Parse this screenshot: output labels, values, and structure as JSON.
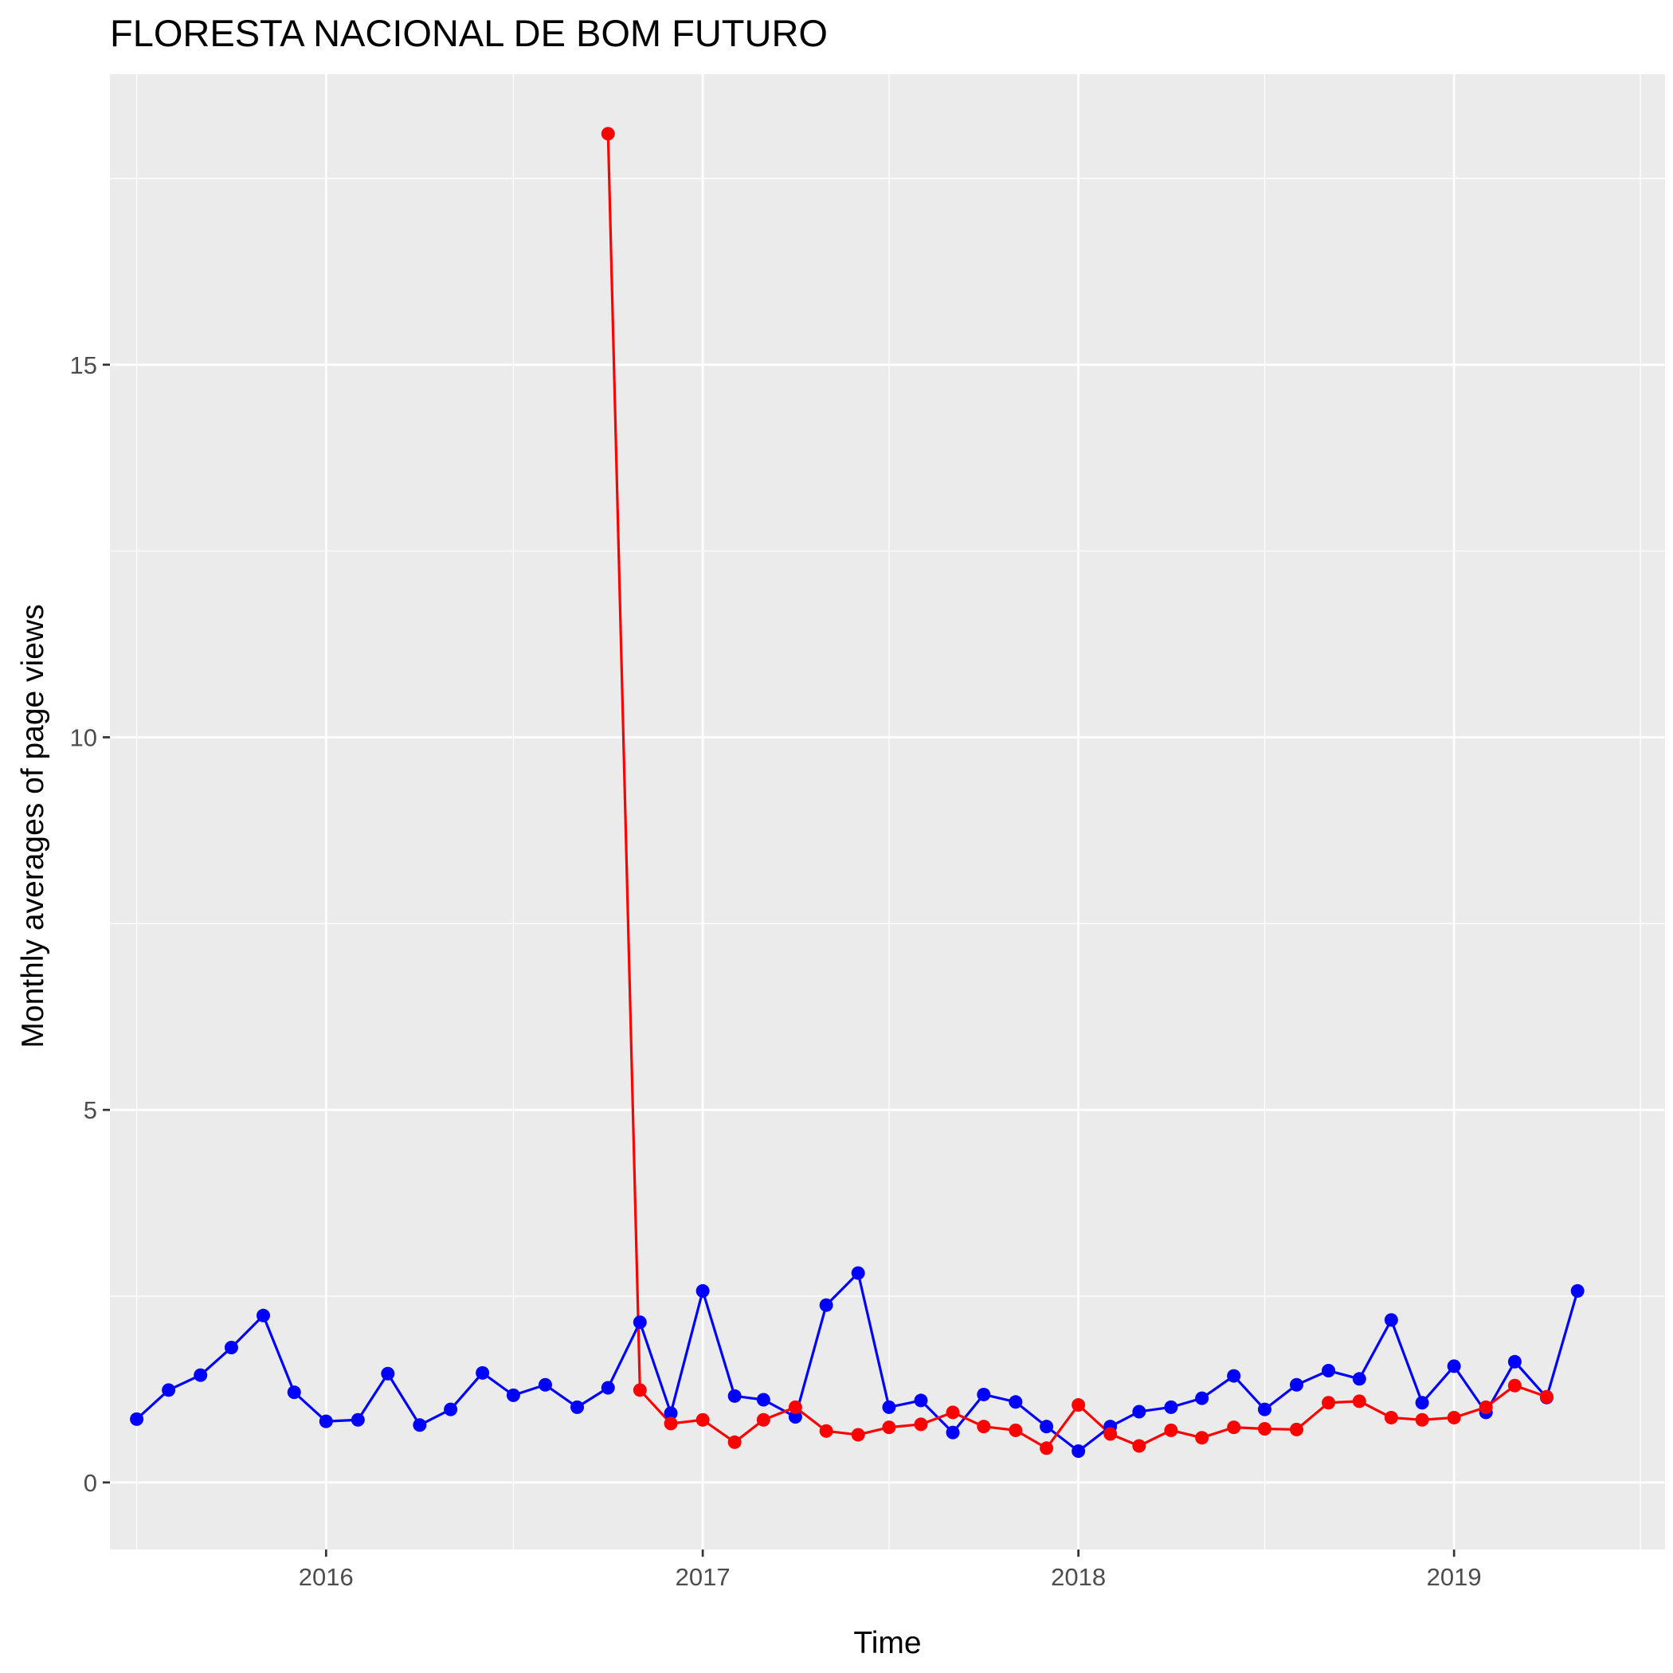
{
  "chart_data": {
    "type": "line",
    "title": "FLORESTA NACIONAL DE BOM FUTURO",
    "xlabel": "Time",
    "ylabel": "Monthly averages of page views",
    "xlim": [
      "2015-06-05",
      "2019-07-25"
    ],
    "ylim": [
      -0.9,
      18.9
    ],
    "x_ticks": [
      {
        "date": "2016-01-01",
        "label": "2016"
      },
      {
        "date": "2017-01-01",
        "label": "2017"
      },
      {
        "date": "2018-01-01",
        "label": "2018"
      },
      {
        "date": "2019-01-01",
        "label": "2019"
      }
    ],
    "y_ticks": [
      {
        "value": 0,
        "label": "0"
      },
      {
        "value": 5,
        "label": "5"
      },
      {
        "value": 10,
        "label": "10"
      },
      {
        "value": 15,
        "label": "15"
      }
    ],
    "grid": true,
    "legend": "none",
    "series": [
      {
        "color": "#0000ff",
        "points": [
          [
            "2015-07-01",
            0.85
          ],
          [
            "2015-08-01",
            1.24
          ],
          [
            "2015-09-01",
            1.44
          ],
          [
            "2015-10-01",
            1.81
          ],
          [
            "2015-11-01",
            2.24
          ],
          [
            "2015-12-01",
            1.21
          ],
          [
            "2016-01-01",
            0.82
          ],
          [
            "2016-02-01",
            0.84
          ],
          [
            "2016-03-01",
            1.46
          ],
          [
            "2016-04-01",
            0.77
          ],
          [
            "2016-05-01",
            0.98
          ],
          [
            "2016-06-01",
            1.47
          ],
          [
            "2016-07-01",
            1.17
          ],
          [
            "2016-08-01",
            1.31
          ],
          [
            "2016-09-01",
            1.01
          ],
          [
            "2016-10-01",
            1.27
          ],
          [
            "2016-11-01",
            2.15
          ],
          [
            "2016-12-01",
            0.93
          ],
          [
            "2017-01-01",
            2.57
          ],
          [
            "2017-02-01",
            1.16
          ],
          [
            "2017-03-01",
            1.11
          ],
          [
            "2017-04-01",
            0.88
          ],
          [
            "2017-05-01",
            2.38
          ],
          [
            "2017-06-01",
            2.81
          ],
          [
            "2017-07-01",
            1.01
          ],
          [
            "2017-08-01",
            1.1
          ],
          [
            "2017-09-01",
            0.67
          ],
          [
            "2017-10-01",
            1.18
          ],
          [
            "2017-11-01",
            1.08
          ],
          [
            "2017-12-01",
            0.75
          ],
          [
            "2018-01-01",
            0.42
          ],
          [
            "2018-02-01",
            0.75
          ],
          [
            "2018-03-01",
            0.95
          ],
          [
            "2018-04-01",
            1.01
          ],
          [
            "2018-05-01",
            1.13
          ],
          [
            "2018-06-01",
            1.43
          ],
          [
            "2018-07-01",
            0.98
          ],
          [
            "2018-08-01",
            1.31
          ],
          [
            "2018-09-01",
            1.5
          ],
          [
            "2018-10-01",
            1.39
          ],
          [
            "2018-11-01",
            2.18
          ],
          [
            "2018-12-01",
            1.07
          ],
          [
            "2019-01-01",
            1.56
          ],
          [
            "2019-02-01",
            0.94
          ],
          [
            "2019-03-01",
            1.62
          ],
          [
            "2019-04-01",
            1.14
          ],
          [
            "2019-05-01",
            2.57
          ]
        ]
      },
      {
        "color": "#ff0000",
        "points": [
          [
            "2016-10-01",
            18.1
          ],
          [
            "2016-11-01",
            1.24
          ],
          [
            "2016-12-01",
            0.79
          ],
          [
            "2017-01-01",
            0.84
          ],
          [
            "2017-02-01",
            0.54
          ],
          [
            "2017-03-01",
            0.84
          ],
          [
            "2017-04-01",
            1.01
          ],
          [
            "2017-05-01",
            0.69
          ],
          [
            "2017-06-01",
            0.64
          ],
          [
            "2017-07-01",
            0.74
          ],
          [
            "2017-08-01",
            0.78
          ],
          [
            "2017-09-01",
            0.94
          ],
          [
            "2017-10-01",
            0.75
          ],
          [
            "2017-11-01",
            0.7
          ],
          [
            "2017-12-01",
            0.46
          ],
          [
            "2018-01-01",
            1.04
          ],
          [
            "2018-02-01",
            0.65
          ],
          [
            "2018-03-01",
            0.49
          ],
          [
            "2018-04-01",
            0.7
          ],
          [
            "2018-05-01",
            0.6
          ],
          [
            "2018-06-01",
            0.74
          ],
          [
            "2018-07-01",
            0.72
          ],
          [
            "2018-08-01",
            0.71
          ],
          [
            "2018-09-01",
            1.07
          ],
          [
            "2018-10-01",
            1.09
          ],
          [
            "2018-11-01",
            0.87
          ],
          [
            "2018-12-01",
            0.84
          ],
          [
            "2019-01-01",
            0.87
          ],
          [
            "2019-02-01",
            1.01
          ],
          [
            "2019-03-01",
            1.3
          ],
          [
            "2019-04-01",
            1.15
          ]
        ]
      }
    ]
  }
}
